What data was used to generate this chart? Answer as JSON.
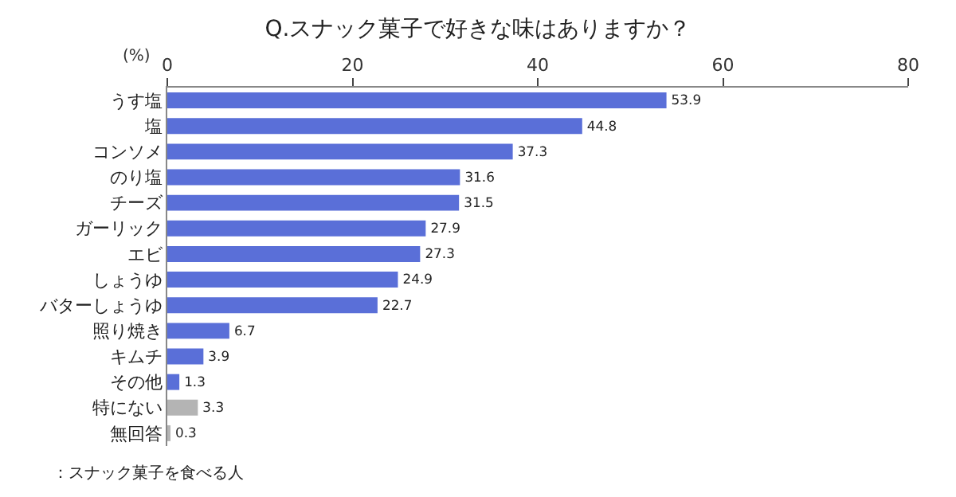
{
  "chart_data": {
    "type": "bar",
    "orientation": "horizontal",
    "title": "Q.スナック菓子で好きな味はありますか？",
    "xlabel": "(%)",
    "categories": [
      "うす塩",
      "塩",
      "コンソメ",
      "のり塩",
      "チーズ",
      "ガーリック",
      "エビ",
      "しょうゆ",
      "バターしょうゆ",
      "照り焼き",
      "キムチ",
      "その他",
      "特にない",
      "無回答"
    ],
    "values": [
      53.9,
      44.8,
      37.3,
      31.6,
      31.5,
      27.9,
      27.3,
      24.9,
      22.7,
      6.7,
      3.9,
      1.3,
      3.3,
      0.3
    ],
    "colors": [
      "#5a6fd8",
      "#5a6fd8",
      "#5a6fd8",
      "#5a6fd8",
      "#5a6fd8",
      "#5a6fd8",
      "#5a6fd8",
      "#5a6fd8",
      "#5a6fd8",
      "#5a6fd8",
      "#5a6fd8",
      "#5a6fd8",
      "#b4b4b4",
      "#b4b4b4"
    ],
    "xlim": [
      0,
      80
    ],
    "xticks": [
      0,
      20,
      40,
      60,
      80
    ],
    "data_labels": true,
    "annotations": [
      "：スナック菓子を食べる人"
    ]
  }
}
